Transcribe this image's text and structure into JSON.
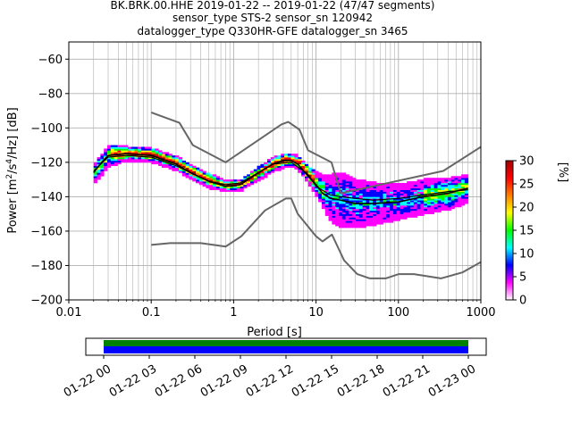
{
  "figure": {
    "title_lines": [
      "BK.BRK.00.HHE   2019-01-22 -- 2019-01-22  (47/47 segments)",
      "sensor_type STS-2 sensor_sn 120942",
      "datalogger_type Q330HR-GFE datalogger_sn 3465"
    ]
  },
  "chart_data": [
    {
      "type": "heatmap",
      "xlabel": "Period [s]",
      "ylabel_parts": [
        "Power [m",
        "2",
        "/s",
        "4",
        "/Hz] [dB]"
      ],
      "xscale": "log",
      "xlim": [
        0.01,
        1000
      ],
      "ylim": [
        -200,
        -50
      ],
      "x_ticks": [
        0.01,
        0.1,
        1,
        10,
        100,
        1000
      ],
      "x_tick_labels": [
        "0.01",
        "0.1",
        "1",
        "10",
        "100",
        "1000"
      ],
      "y_ticks": [
        -200,
        -180,
        -160,
        -140,
        -120,
        -100,
        -80,
        -60
      ],
      "y_tick_labels": [
        "−200",
        "−180",
        "−160",
        "−140",
        "−120",
        "−100",
        "−80",
        "−60"
      ],
      "grid": true,
      "series": [
        {
          "role": "new-high-noise-model",
          "color": "#666666",
          "points": [
            [
              0.1,
              -91
            ],
            [
              0.22,
              -97
            ],
            [
              0.32,
              -110
            ],
            [
              0.8,
              -120
            ],
            [
              3.8,
              -98
            ],
            [
              4.6,
              -96.5
            ],
            [
              6.3,
              -101
            ],
            [
              8,
              -113
            ],
            [
              15.4,
              -120
            ],
            [
              20,
              -138
            ],
            [
              350,
              -125
            ],
            [
              1000,
              -111
            ]
          ]
        },
        {
          "role": "new-low-noise-model",
          "color": "#666666",
          "points": [
            [
              0.1,
              -168
            ],
            [
              0.17,
              -167
            ],
            [
              0.4,
              -167
            ],
            [
              0.8,
              -169
            ],
            [
              1.24,
              -163
            ],
            [
              2.4,
              -148
            ],
            [
              4.3,
              -141
            ],
            [
              5,
              -141
            ],
            [
              6,
              -150
            ],
            [
              10,
              -163
            ],
            [
              12,
              -166
            ],
            [
              15.6,
              -162
            ],
            [
              21.9,
              -177
            ],
            [
              31.6,
              -185
            ],
            [
              45,
              -187.5
            ],
            [
              70,
              -187.5
            ],
            [
              101,
              -185
            ],
            [
              154,
              -185
            ],
            [
              328,
              -187.5
            ],
            [
              600,
              -184
            ],
            [
              1000,
              -178
            ]
          ]
        },
        {
          "role": "mode",
          "color": "#000000",
          "points": [
            [
              0.02,
              -126
            ],
            [
              0.025,
              -120
            ],
            [
              0.03,
              -116
            ],
            [
              0.05,
              -115
            ],
            [
              0.1,
              -116
            ],
            [
              0.2,
              -121
            ],
            [
              0.3,
              -126
            ],
            [
              0.5,
              -131
            ],
            [
              0.8,
              -134
            ],
            [
              1.2,
              -133
            ],
            [
              2,
              -126
            ],
            [
              3,
              -121
            ],
            [
              4,
              -119
            ],
            [
              5,
              -119
            ],
            [
              6,
              -121
            ],
            [
              8,
              -128
            ],
            [
              10,
              -133
            ],
            [
              12,
              -138
            ],
            [
              15,
              -141
            ],
            [
              20,
              -142
            ],
            [
              30,
              -144
            ],
            [
              50,
              -144
            ],
            [
              100,
              -143
            ],
            [
              200,
              -140
            ],
            [
              400,
              -138
            ],
            [
              700,
              -135
            ]
          ]
        },
        {
          "role": "mean",
          "color": "#000000",
          "points": [
            [
              0.02,
              -125
            ],
            [
              0.03,
              -117
            ],
            [
              0.05,
              -116
            ],
            [
              0.1,
              -117
            ],
            [
              0.2,
              -122
            ],
            [
              0.5,
              -131
            ],
            [
              0.8,
              -133
            ],
            [
              1.2,
              -132
            ],
            [
              2,
              -126
            ],
            [
              3,
              -121
            ],
            [
              5,
              -120
            ],
            [
              8,
              -127
            ],
            [
              10,
              -134
            ],
            [
              15,
              -139
            ],
            [
              20,
              -140
            ],
            [
              30,
              -141
            ],
            [
              50,
              -142
            ],
            [
              100,
              -141
            ],
            [
              200,
              -139
            ],
            [
              400,
              -137
            ],
            [
              700,
              -136
            ]
          ]
        }
      ],
      "density_band": {
        "periods": [
          0.02,
          0.03,
          0.05,
          0.1,
          0.2,
          0.3,
          0.5,
          0.8,
          1.2,
          2,
          3,
          4,
          5,
          6,
          8,
          10,
          12,
          15,
          20,
          30,
          50,
          100,
          200,
          400,
          700
        ],
        "center": [
          -126,
          -116,
          -115,
          -116,
          -121,
          -126,
          -131,
          -134,
          -133,
          -126,
          -121,
          -119,
          -119,
          -121,
          -128,
          -133,
          -138,
          -141,
          -142,
          -144,
          -144,
          -143,
          -140,
          -138,
          -135
        ],
        "half_width": [
          6,
          6,
          4,
          4,
          4,
          4,
          4,
          3,
          3,
          4,
          4,
          4,
          4,
          4,
          5,
          7,
          10,
          14,
          16,
          14,
          12,
          10,
          10,
          9,
          8
        ]
      }
    },
    {
      "type": "heatmap",
      "role": "colorbar",
      "ylabel": "[%]",
      "ylim": [
        0,
        30
      ],
      "ticks": [
        0,
        5,
        10,
        15,
        20,
        25,
        30
      ],
      "tick_labels": [
        "0",
        "5",
        "10",
        "15",
        "20",
        "25",
        "30"
      ],
      "colormap": [
        "#ffffff",
        "#ff00ff",
        "#0000ff",
        "#00ffff",
        "#00ff00",
        "#ffff00",
        "#ff8000",
        "#ff0000",
        "#a00000"
      ]
    },
    {
      "type": "bar",
      "role": "data-coverage-timeline",
      "xlim": [
        "2019-01-21 22:30",
        "2019-01-23 01:00"
      ],
      "tick_labels": [
        "01-22 00",
        "01-22 03",
        "01-22 06",
        "01-22 09",
        "01-22 12",
        "01-22 15",
        "01-22 18",
        "01-22 21",
        "01-23 00"
      ],
      "tick_hours": [
        0,
        3,
        6,
        9,
        12,
        15,
        18,
        21,
        24
      ],
      "segments": [
        {
          "name": "processed",
          "start_hour": 0,
          "end_hour": 24,
          "color": "#008000"
        },
        {
          "name": "available",
          "start_hour": 0,
          "end_hour": 24,
          "color": "#0000ff"
        }
      ]
    }
  ]
}
